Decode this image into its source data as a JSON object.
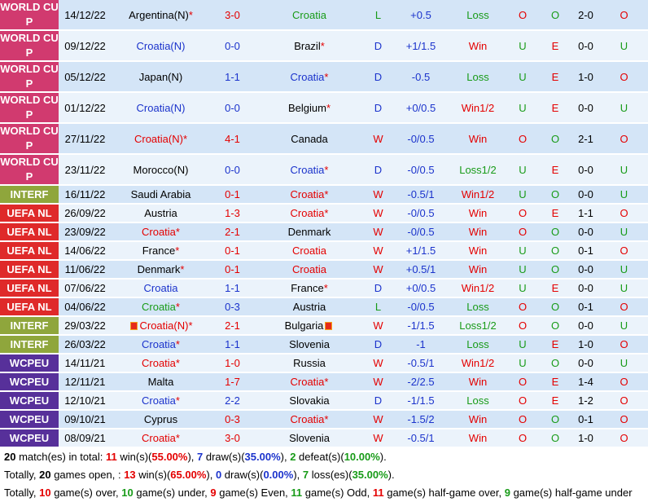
{
  "league_colors": {
    "WORLD CUP": "#d13a6f",
    "INTERF": "#8fa63c",
    "UEFA NL": "#df2a2a",
    "WCPEU": "#57309a"
  },
  "matches": [
    {
      "league": "WORLD CUP",
      "date": "14/12/22",
      "home": "Argentina(N)",
      "home_star": "*",
      "home_color": "black",
      "score": "3-0",
      "score_color": "red",
      "away": "Croatia",
      "away_star": "",
      "away_color": "green",
      "result": "L",
      "result_color": "green",
      "handicap": "+0.5",
      "hresult": "Loss",
      "hresult_color": "green",
      "ou": "O",
      "ou_color": "red",
      "oe": "O",
      "oe_color": "green",
      "ht": "2-0",
      "htou": "O",
      "htou_color": "red"
    },
    {
      "league": "WORLD CUP",
      "date": "09/12/22",
      "home": "Croatia(N)",
      "home_star": "",
      "home_color": "blue",
      "score": "0-0",
      "score_color": "blue",
      "away": "Brazil",
      "away_star": "*",
      "away_color": "black",
      "result": "D",
      "result_color": "blue",
      "handicap": "+1/1.5",
      "hresult": "Win",
      "hresult_color": "red",
      "ou": "U",
      "ou_color": "green",
      "oe": "E",
      "oe_color": "red",
      "ht": "0-0",
      "htou": "U",
      "htou_color": "green"
    },
    {
      "league": "WORLD CUP",
      "date": "05/12/22",
      "home": "Japan(N)",
      "home_star": "",
      "home_color": "black",
      "score": "1-1",
      "score_color": "blue",
      "away": "Croatia",
      "away_star": "*",
      "away_color": "blue",
      "result": "D",
      "result_color": "blue",
      "handicap": "-0.5",
      "hresult": "Loss",
      "hresult_color": "green",
      "ou": "U",
      "ou_color": "green",
      "oe": "E",
      "oe_color": "red",
      "ht": "1-0",
      "htou": "O",
      "htou_color": "red"
    },
    {
      "league": "WORLD CUP",
      "date": "01/12/22",
      "home": "Croatia(N)",
      "home_star": "",
      "home_color": "blue",
      "score": "0-0",
      "score_color": "blue",
      "away": "Belgium",
      "away_star": "*",
      "away_color": "black",
      "result": "D",
      "result_color": "blue",
      "handicap": "+0/0.5",
      "hresult": "Win1/2",
      "hresult_color": "red",
      "ou": "U",
      "ou_color": "green",
      "oe": "E",
      "oe_color": "red",
      "ht": "0-0",
      "htou": "U",
      "htou_color": "green"
    },
    {
      "league": "WORLD CUP",
      "date": "27/11/22",
      "home": "Croatia(N)",
      "home_star": "*",
      "home_color": "red",
      "score": "4-1",
      "score_color": "red",
      "away": "Canada",
      "away_star": "",
      "away_color": "black",
      "result": "W",
      "result_color": "red",
      "handicap": "-0/0.5",
      "hresult": "Win",
      "hresult_color": "red",
      "ou": "O",
      "ou_color": "red",
      "oe": "O",
      "oe_color": "green",
      "ht": "2-1",
      "htou": "O",
      "htou_color": "red"
    },
    {
      "league": "WORLD CUP",
      "date": "23/11/22",
      "home": "Morocco(N)",
      "home_star": "",
      "home_color": "black",
      "score": "0-0",
      "score_color": "blue",
      "away": "Croatia",
      "away_star": "*",
      "away_color": "blue",
      "result": "D",
      "result_color": "blue",
      "handicap": "-0/0.5",
      "hresult": "Loss1/2",
      "hresult_color": "green",
      "ou": "U",
      "ou_color": "green",
      "oe": "E",
      "oe_color": "red",
      "ht": "0-0",
      "htou": "U",
      "htou_color": "green"
    },
    {
      "league": "INTERF",
      "date": "16/11/22",
      "home": "Saudi Arabia",
      "home_star": "",
      "home_color": "black",
      "score": "0-1",
      "score_color": "red",
      "away": "Croatia",
      "away_star": "*",
      "away_color": "red",
      "result": "W",
      "result_color": "red",
      "handicap": "-0.5/1",
      "hresult": "Win1/2",
      "hresult_color": "red",
      "ou": "U",
      "ou_color": "green",
      "oe": "O",
      "oe_color": "green",
      "ht": "0-0",
      "htou": "U",
      "htou_color": "green"
    },
    {
      "league": "UEFA NL",
      "date": "26/09/22",
      "home": "Austria",
      "home_star": "",
      "home_color": "black",
      "score": "1-3",
      "score_color": "red",
      "away": "Croatia",
      "away_star": "*",
      "away_color": "red",
      "result": "W",
      "result_color": "red",
      "handicap": "-0/0.5",
      "hresult": "Win",
      "hresult_color": "red",
      "ou": "O",
      "ou_color": "red",
      "oe": "E",
      "oe_color": "red",
      "ht": "1-1",
      "htou": "O",
      "htou_color": "red"
    },
    {
      "league": "UEFA NL",
      "date": "23/09/22",
      "home": "Croatia",
      "home_star": "*",
      "home_color": "red",
      "score": "2-1",
      "score_color": "red",
      "away": "Denmark",
      "away_star": "",
      "away_color": "black",
      "result": "W",
      "result_color": "red",
      "handicap": "-0/0.5",
      "hresult": "Win",
      "hresult_color": "red",
      "ou": "O",
      "ou_color": "red",
      "oe": "O",
      "oe_color": "green",
      "ht": "0-0",
      "htou": "U",
      "htou_color": "green"
    },
    {
      "league": "UEFA NL",
      "date": "14/06/22",
      "home": "France",
      "home_star": "*",
      "home_color": "black",
      "score": "0-1",
      "score_color": "red",
      "away": "Croatia",
      "away_star": "",
      "away_color": "red",
      "result": "W",
      "result_color": "red",
      "handicap": "+1/1.5",
      "hresult": "Win",
      "hresult_color": "red",
      "ou": "U",
      "ou_color": "green",
      "oe": "O",
      "oe_color": "green",
      "ht": "0-1",
      "htou": "O",
      "htou_color": "red"
    },
    {
      "league": "UEFA NL",
      "date": "11/06/22",
      "home": "Denmark",
      "home_star": "*",
      "home_color": "black",
      "score": "0-1",
      "score_color": "red",
      "away": "Croatia",
      "away_star": "",
      "away_color": "red",
      "result": "W",
      "result_color": "red",
      "handicap": "+0.5/1",
      "hresult": "Win",
      "hresult_color": "red",
      "ou": "U",
      "ou_color": "green",
      "oe": "O",
      "oe_color": "green",
      "ht": "0-0",
      "htou": "U",
      "htou_color": "green"
    },
    {
      "league": "UEFA NL",
      "date": "07/06/22",
      "home": "Croatia",
      "home_star": "",
      "home_color": "blue",
      "score": "1-1",
      "score_color": "blue",
      "away": "France",
      "away_star": "*",
      "away_color": "black",
      "result": "D",
      "result_color": "blue",
      "handicap": "+0/0.5",
      "hresult": "Win1/2",
      "hresult_color": "red",
      "ou": "U",
      "ou_color": "green",
      "oe": "E",
      "oe_color": "red",
      "ht": "0-0",
      "htou": "U",
      "htou_color": "green"
    },
    {
      "league": "UEFA NL",
      "date": "04/06/22",
      "home": "Croatia",
      "home_star": "*",
      "home_color": "green",
      "score": "0-3",
      "score_color": "blue",
      "away": "Austria",
      "away_star": "",
      "away_color": "black",
      "result": "L",
      "result_color": "green",
      "handicap": "-0/0.5",
      "hresult": "Loss",
      "hresult_color": "green",
      "ou": "O",
      "ou_color": "red",
      "oe": "O",
      "oe_color": "green",
      "ht": "0-1",
      "htou": "O",
      "htou_color": "red"
    },
    {
      "league": "INTERF",
      "date": "29/03/22",
      "home": "Croatia(N)",
      "home_star": "*",
      "home_color": "red",
      "home_flag": true,
      "score": "2-1",
      "score_color": "red",
      "away": "Bulgaria",
      "away_star": "",
      "away_color": "black",
      "away_flag": true,
      "result": "W",
      "result_color": "red",
      "handicap": "-1/1.5",
      "hresult": "Loss1/2",
      "hresult_color": "green",
      "ou": "O",
      "ou_color": "red",
      "oe": "O",
      "oe_color": "green",
      "ht": "0-0",
      "htou": "U",
      "htou_color": "green"
    },
    {
      "league": "INTERF",
      "date": "26/03/22",
      "home": "Croatia",
      "home_star": "*",
      "home_color": "blue",
      "score": "1-1",
      "score_color": "blue",
      "away": "Slovenia",
      "away_star": "",
      "away_color": "black",
      "result": "D",
      "result_color": "blue",
      "handicap": "-1",
      "hresult": "Loss",
      "hresult_color": "green",
      "ou": "U",
      "ou_color": "green",
      "oe": "E",
      "oe_color": "red",
      "ht": "1-0",
      "htou": "O",
      "htou_color": "red"
    },
    {
      "league": "WCPEU",
      "date": "14/11/21",
      "home": "Croatia",
      "home_star": "*",
      "home_color": "red",
      "score": "1-0",
      "score_color": "red",
      "away": "Russia",
      "away_star": "",
      "away_color": "black",
      "result": "W",
      "result_color": "red",
      "handicap": "-0.5/1",
      "hresult": "Win1/2",
      "hresult_color": "red",
      "ou": "U",
      "ou_color": "green",
      "oe": "O",
      "oe_color": "green",
      "ht": "0-0",
      "htou": "U",
      "htou_color": "green"
    },
    {
      "league": "WCPEU",
      "date": "12/11/21",
      "home": "Malta",
      "home_star": "",
      "home_color": "black",
      "score": "1-7",
      "score_color": "red",
      "away": "Croatia",
      "away_star": "*",
      "away_color": "red",
      "result": "W",
      "result_color": "red",
      "handicap": "-2/2.5",
      "hresult": "Win",
      "hresult_color": "red",
      "ou": "O",
      "ou_color": "red",
      "oe": "E",
      "oe_color": "red",
      "ht": "1-4",
      "htou": "O",
      "htou_color": "red"
    },
    {
      "league": "WCPEU",
      "date": "12/10/21",
      "home": "Croatia",
      "home_star": "*",
      "home_color": "blue",
      "score": "2-2",
      "score_color": "blue",
      "away": "Slovakia",
      "away_star": "",
      "away_color": "black",
      "result": "D",
      "result_color": "blue",
      "handicap": "-1/1.5",
      "hresult": "Loss",
      "hresult_color": "green",
      "ou": "O",
      "ou_color": "red",
      "oe": "E",
      "oe_color": "red",
      "ht": "1-2",
      "htou": "O",
      "htou_color": "red"
    },
    {
      "league": "WCPEU",
      "date": "09/10/21",
      "home": "Cyprus",
      "home_star": "",
      "home_color": "black",
      "score": "0-3",
      "score_color": "red",
      "away": "Croatia",
      "away_star": "*",
      "away_color": "red",
      "result": "W",
      "result_color": "red",
      "handicap": "-1.5/2",
      "hresult": "Win",
      "hresult_color": "red",
      "ou": "O",
      "ou_color": "red",
      "oe": "O",
      "oe_color": "green",
      "ht": "0-1",
      "htou": "O",
      "htou_color": "red"
    },
    {
      "league": "WCPEU",
      "date": "08/09/21",
      "home": "Croatia",
      "home_star": "*",
      "home_color": "red",
      "score": "3-0",
      "score_color": "red",
      "away": "Slovenia",
      "away_star": "",
      "away_color": "black",
      "result": "W",
      "result_color": "red",
      "handicap": "-0.5/1",
      "hresult": "Win",
      "hresult_color": "red",
      "ou": "O",
      "ou_color": "red",
      "oe": "O",
      "oe_color": "green",
      "ht": "1-0",
      "htou": "O",
      "htou_color": "red"
    }
  ],
  "summary": {
    "line1": {
      "total": "20",
      "t1": " match(es) in total: ",
      "wins": "11",
      "t2": " win(s)(",
      "win_pct": "55.00%",
      "t3": "), ",
      "draws": "7",
      "t4": " draw(s)(",
      "draw_pct": "35.00%",
      "t5": "), ",
      "defeats": "2",
      "t6": " defeat(s)(",
      "defeat_pct": "10.00%",
      "t7": ")."
    },
    "line2": {
      "t0": "Totally, ",
      "games": "20",
      "t1": " games open, : ",
      "wins": "13",
      "t2": " win(s)(",
      "win_pct": "65.00%",
      "t3": "), ",
      "draws": "0",
      "t4": " draw(s)(",
      "draw_pct": "0.00%",
      "t5": "), ",
      "loss": "7",
      "t6": " loss(es)(",
      "loss_pct": "35.00%",
      "t7": ")."
    },
    "line3": {
      "t0": "Totally, ",
      "over": "10",
      "t1": " game(s) over, ",
      "under": "10",
      "t2": " game(s) under, ",
      "even": "9",
      "t3": " game(s) Even, ",
      "odd": "11",
      "t4": " game(s) Odd, ",
      "ht_over": "11",
      "t5": " game(s) half-game over, ",
      "ht_under": "9",
      "t6": " game(s) half-game under"
    }
  }
}
